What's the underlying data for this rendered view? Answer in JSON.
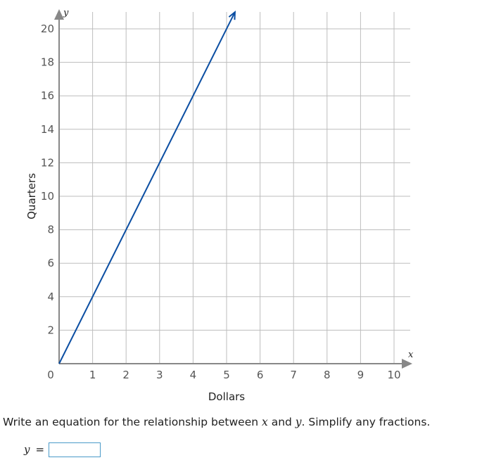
{
  "chart_data": {
    "type": "line",
    "xlabel": "Dollars",
    "ylabel": "Quarters",
    "x_var": "x",
    "y_var": "y",
    "xlim": [
      0,
      10
    ],
    "ylim": [
      0,
      20
    ],
    "x_ticks": [
      0,
      1,
      2,
      3,
      4,
      5,
      6,
      7,
      8,
      9,
      10
    ],
    "y_ticks": [
      2,
      4,
      6,
      8,
      10,
      12,
      14,
      16,
      18,
      20
    ],
    "grid": true,
    "series": [
      {
        "x": [
          0,
          5.25
        ],
        "y": [
          0,
          21
        ],
        "color": "#0b4ea2",
        "arrow_end": true
      }
    ]
  },
  "question": {
    "part1": "Write an equation for the relationship between ",
    "var1": "x",
    "part2": " and ",
    "var2": "y",
    "part3": ". Simplify any fractions."
  },
  "answer": {
    "var": "y",
    "equals": "=",
    "value": ""
  },
  "colors": {
    "grid": "#bdbdbd",
    "axis": "#888888",
    "line": "#0b4ea2",
    "input_border": "#4a9ac9"
  }
}
